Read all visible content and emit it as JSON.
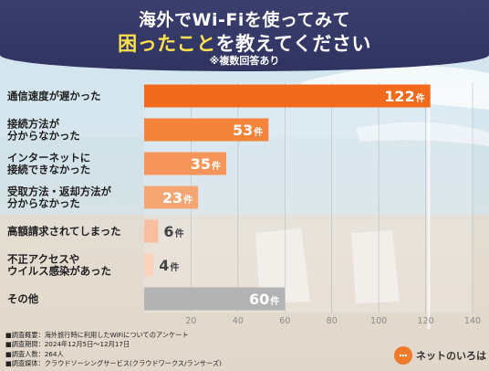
{
  "header": {
    "title_line1": "海外でWi-Fiを使ってみて",
    "title_line2_highlight": "困ったこと",
    "title_line2_rest": "を教えてください",
    "subtitle": "※複数回答あり"
  },
  "chart_data": {
    "type": "bar",
    "orientation": "horizontal",
    "categories": [
      "通信速度が遅かった",
      "接続方法が\n分からなかった",
      "インターネットに\n接続できなかった",
      "受取方法・返却方法が\n分からなかった",
      "高額請求されてしまった",
      "不正アクセスや\nウイルス感染があった",
      "その他"
    ],
    "values": [
      122,
      53,
      35,
      23,
      6,
      4,
      60
    ],
    "value_unit": "件",
    "xlim": [
      0,
      140
    ],
    "xticks": [
      20,
      40,
      60,
      80,
      100,
      120,
      140
    ],
    "grid": true,
    "bar_colors": [
      "#f26a1b",
      "#f4843a",
      "#f5955a",
      "#f6a673",
      "#f8be9e",
      "#fad3bf",
      "#b3b3b3"
    ]
  },
  "footer": {
    "notes": [
      "■調査概要：海外旅行時に利用したWiFiについてのアンケート",
      "■調査期間：2024年12月5日〜12月17日",
      "■調査人数：264人",
      "■調査媒体：クラウドソーシングサービス(クラウドワークス/ランサーズ)"
    ],
    "logo_text": "ネットのいろは"
  }
}
